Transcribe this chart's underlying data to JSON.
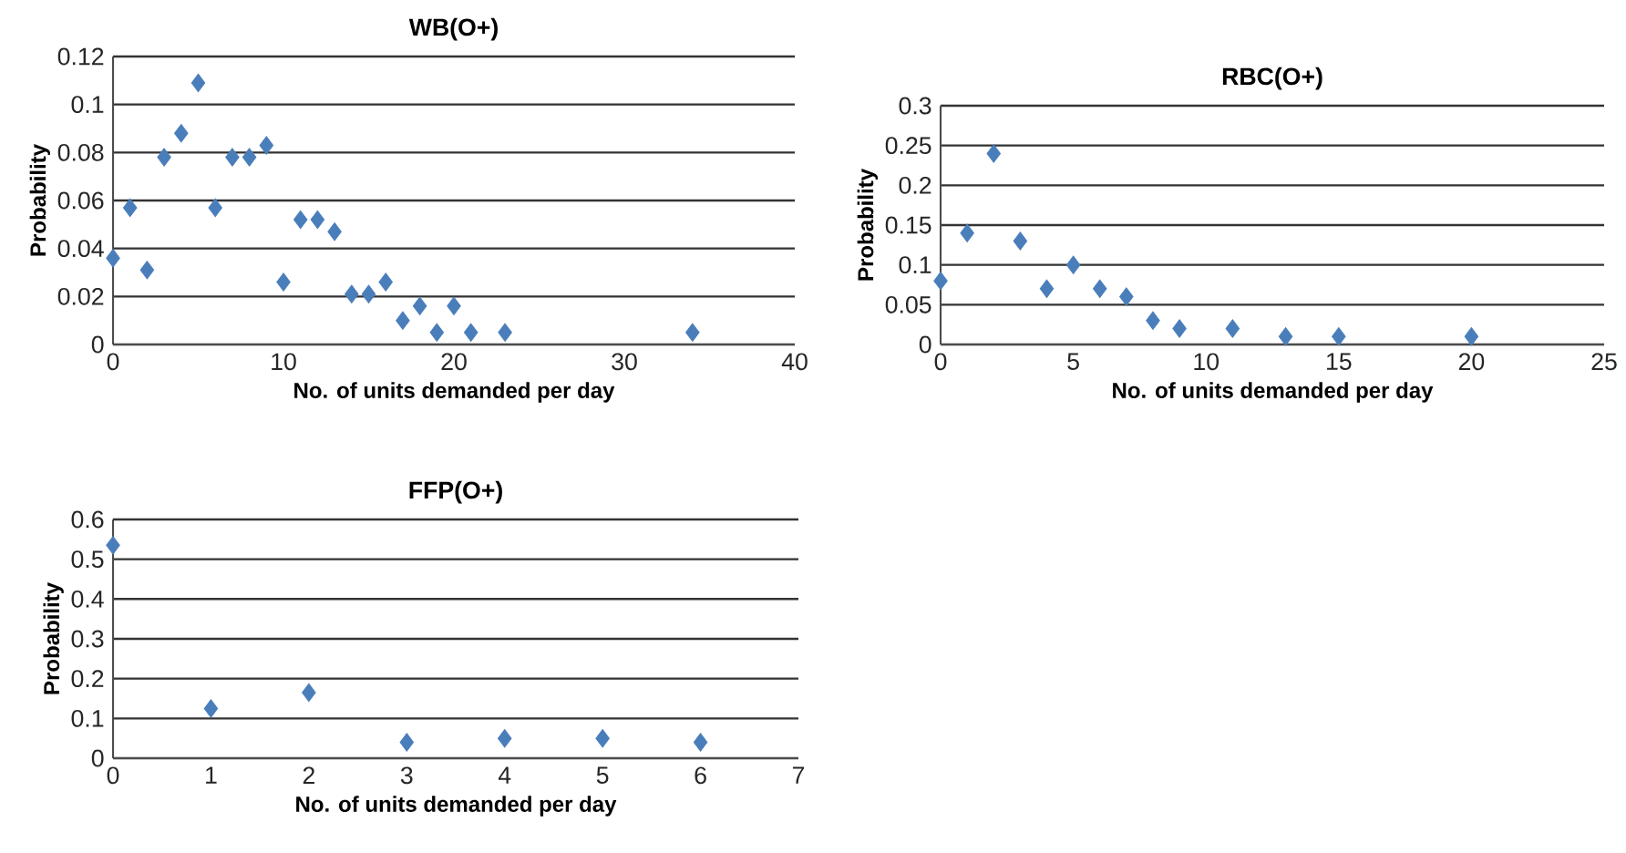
{
  "chart_data": [
    {
      "type": "scatter",
      "title": "WB(O+)",
      "xlabel": "No. of units demanded per day",
      "ylabel": "Probability",
      "x": [
        0,
        1,
        2,
        3,
        4,
        5,
        6,
        7,
        8,
        9,
        10,
        11,
        12,
        13,
        14,
        15,
        16,
        17,
        18,
        19,
        20,
        21,
        23,
        34
      ],
      "values": [
        0.036,
        0.057,
        0.031,
        0.078,
        0.088,
        0.109,
        0.057,
        0.078,
        0.078,
        0.083,
        0.026,
        0.052,
        0.052,
        0.047,
        0.021,
        0.021,
        0.026,
        0.01,
        0.016,
        0.005,
        0.016,
        0.005,
        0.005,
        0.005
      ],
      "color": "#4a7ebb",
      "marker": "diamond",
      "grid": "y",
      "xlim": [
        0,
        40
      ],
      "xticks": [
        0,
        10,
        20,
        30,
        40
      ],
      "ylim": [
        0,
        0.12
      ],
      "yticks": [
        0,
        0.02,
        0.04,
        0.06,
        0.08,
        0.1,
        0.12
      ]
    },
    {
      "type": "scatter",
      "title": "RBC(O+)",
      "xlabel": "No. of units demanded per day",
      "ylabel": "Probability",
      "x": [
        0,
        1,
        2,
        3,
        4,
        5,
        6,
        7,
        8,
        9,
        11,
        13,
        15,
        20
      ],
      "values": [
        0.08,
        0.14,
        0.24,
        0.13,
        0.07,
        0.1,
        0.07,
        0.06,
        0.03,
        0.02,
        0.02,
        0.01,
        0.01,
        0.01
      ],
      "color": "#4a7ebb",
      "marker": "diamond",
      "grid": "y",
      "xlim": [
        0,
        25
      ],
      "xticks": [
        0,
        5,
        10,
        15,
        20,
        25
      ],
      "ylim": [
        0,
        0.3
      ],
      "yticks": [
        0,
        0.05,
        0.1,
        0.15,
        0.2,
        0.25,
        0.3
      ]
    },
    {
      "type": "scatter",
      "title": "FFP(O+)",
      "xlabel": "No. of units demanded per day",
      "ylabel": "Probability",
      "x": [
        0,
        1,
        2,
        3,
        4,
        5,
        6
      ],
      "values": [
        0.535,
        0.125,
        0.165,
        0.04,
        0.05,
        0.05,
        0.04
      ],
      "color": "#4a7ebb",
      "marker": "diamond",
      "grid": "y",
      "xlim": [
        0,
        7
      ],
      "xticks": [
        0,
        1,
        2,
        3,
        4,
        5,
        6,
        7
      ],
      "ylim": [
        0,
        0.6
      ],
      "yticks": [
        0,
        0.1,
        0.2,
        0.3,
        0.4,
        0.5,
        0.6
      ]
    }
  ]
}
